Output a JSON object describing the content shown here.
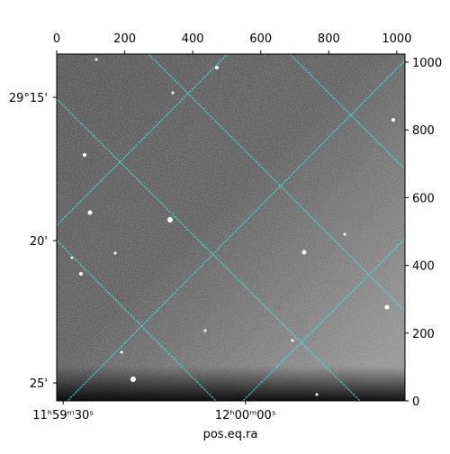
{
  "chart_data": {
    "type": "image",
    "xlabel": "pos.eq.ra",
    "xlim": [
      0,
      1024
    ],
    "ylim": [
      0,
      1024
    ],
    "xticks": [
      0,
      200,
      400,
      600,
      800,
      1000
    ],
    "yticks": [
      0,
      200,
      400,
      600,
      800,
      1000
    ],
    "ra_ticks": [
      {
        "value": 19,
        "label": "11ʰ59ᵐ30ˢ"
      },
      {
        "value": 555,
        "label": "12ʰ00ᵐ00ˢ"
      }
    ],
    "dec_ticks": [
      {
        "value": 896,
        "label": "29°15'"
      },
      {
        "value": 473,
        "label": "20'"
      },
      {
        "value": 53,
        "label": "25'"
      }
    ],
    "grid_color": "#40e0e0"
  }
}
